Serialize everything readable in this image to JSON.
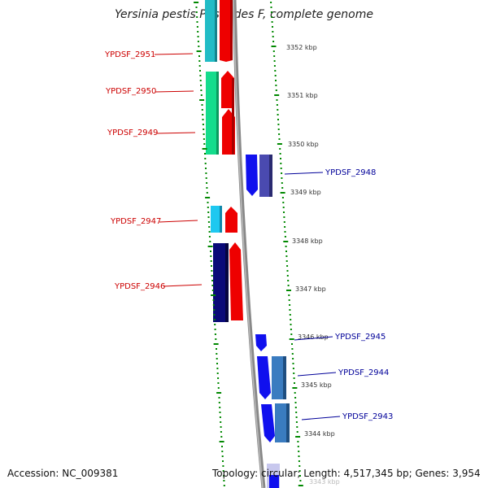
{
  "title": "Yersinia pestis Pestoides F, complete genome",
  "footer": {
    "accession": "Accession: NC_009381",
    "summary": "Topology: circular; Length: 4,517,345 bp; Genes: 3,954"
  },
  "colors": {
    "ruler_ticks": "#008800",
    "backbone": "#888888",
    "left_labels": "#cc0000",
    "right_labels": "#000099",
    "tick_text": "#333333"
  },
  "ruler_labels": [
    {
      "label": "3352 kbp",
      "kbp": 3352
    },
    {
      "label": "3351 kbp",
      "kbp": 3351
    },
    {
      "label": "3350 kbp",
      "kbp": 3350
    },
    {
      "label": "3349 kbp",
      "kbp": 3349
    },
    {
      "label": "3348 kbp",
      "kbp": 3348
    },
    {
      "label": "3347 kbp",
      "kbp": 3347
    },
    {
      "label": "3346 kbp",
      "kbp": 3346
    },
    {
      "label": "3345 kbp",
      "kbp": 3345
    },
    {
      "label": "3344 kbp",
      "kbp": 3344
    },
    {
      "label": "3343 kbp",
      "kbp": 3343
    }
  ],
  "genes_left": [
    {
      "label": "YPDSF_2951",
      "color": "#cc0000"
    },
    {
      "label": "YPDSF_2950",
      "color": "#cc0000"
    },
    {
      "label": "YPDSF_2949",
      "color": "#cc0000"
    },
    {
      "label": "YPDSF_2947",
      "color": "#cc0000"
    },
    {
      "label": "YPDSF_2946",
      "color": "#cc0000"
    }
  ],
  "genes_right": [
    {
      "label": "YPDSF_2948",
      "color": "#000099"
    },
    {
      "label": "YPDSF_2945",
      "color": "#000099"
    },
    {
      "label": "YPDSF_2944",
      "color": "#000099"
    },
    {
      "label": "YPDSF_2943",
      "color": "#000099"
    }
  ]
}
